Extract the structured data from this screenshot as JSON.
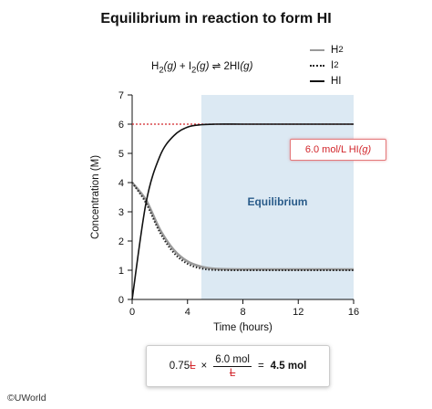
{
  "title": "Equilibrium in reaction to form HI",
  "equation": {
    "h2": "H",
    "h2_sub": "2",
    "g1": "(g)",
    "plus": " + ",
    "i2": "I",
    "i2_sub": "2",
    "g2": "(g)",
    "arrow": " ⇌ ",
    "product": "2HI",
    "g3": "(g)"
  },
  "callout": {
    "text": "6.0 mol/L HI",
    "state": "(g)",
    "color": "#d2262b"
  },
  "calculation": {
    "coef": "0.75",
    "coef_unit": "L",
    "times": "×",
    "num": "6.0 mol",
    "den": "L",
    "equals": "=",
    "result": "4.5 mol"
  },
  "copyright": "©UWorld",
  "chart_data": {
    "type": "line",
    "title": "Equilibrium in reaction to form HI",
    "xlabel": "Time (hours)",
    "ylabel": "Concentration (M)",
    "xlim": [
      0,
      16
    ],
    "ylim": [
      0,
      7
    ],
    "x_ticks": [
      0,
      4,
      8,
      12,
      16
    ],
    "y_ticks": [
      0,
      1,
      2,
      3,
      4,
      5,
      6,
      7
    ],
    "shaded_region": {
      "x_start": 5,
      "x_end": 16,
      "label": "Equilibrium",
      "color": "#dce9f3",
      "label_color": "#2a5c8a"
    },
    "reference_line": {
      "y": 6,
      "style": "dotted",
      "color": "#d2262b"
    },
    "series": [
      {
        "name": "H",
        "name_sub": "2",
        "style": "solid",
        "color": "#9a9a9a",
        "x": [
          0,
          1,
          2,
          3,
          4,
          5,
          6,
          8,
          10,
          12,
          14,
          16
        ],
        "y": [
          4.0,
          3.4,
          2.4,
          1.7,
          1.3,
          1.12,
          1.05,
          1.03,
          1.03,
          1.03,
          1.03,
          1.03
        ]
      },
      {
        "name": "I",
        "name_sub": "2",
        "style": "dotted",
        "color": "#222222",
        "x": [
          0,
          1,
          2,
          3,
          4,
          5,
          6,
          8,
          10,
          12,
          14,
          16
        ],
        "y": [
          4.0,
          3.3,
          2.3,
          1.6,
          1.22,
          1.06,
          1.01,
          1.0,
          1.0,
          1.0,
          1.0,
          1.0
        ]
      },
      {
        "name": "HI",
        "style": "solid",
        "color": "#111111",
        "x": [
          0,
          1,
          2,
          3,
          4,
          5,
          6,
          8,
          10,
          12,
          14,
          16
        ],
        "y": [
          0.0,
          3.3,
          4.9,
          5.6,
          5.9,
          5.98,
          6.0,
          6.0,
          6.0,
          6.0,
          6.0,
          6.0
        ]
      }
    ],
    "legend_position": "top-right"
  }
}
